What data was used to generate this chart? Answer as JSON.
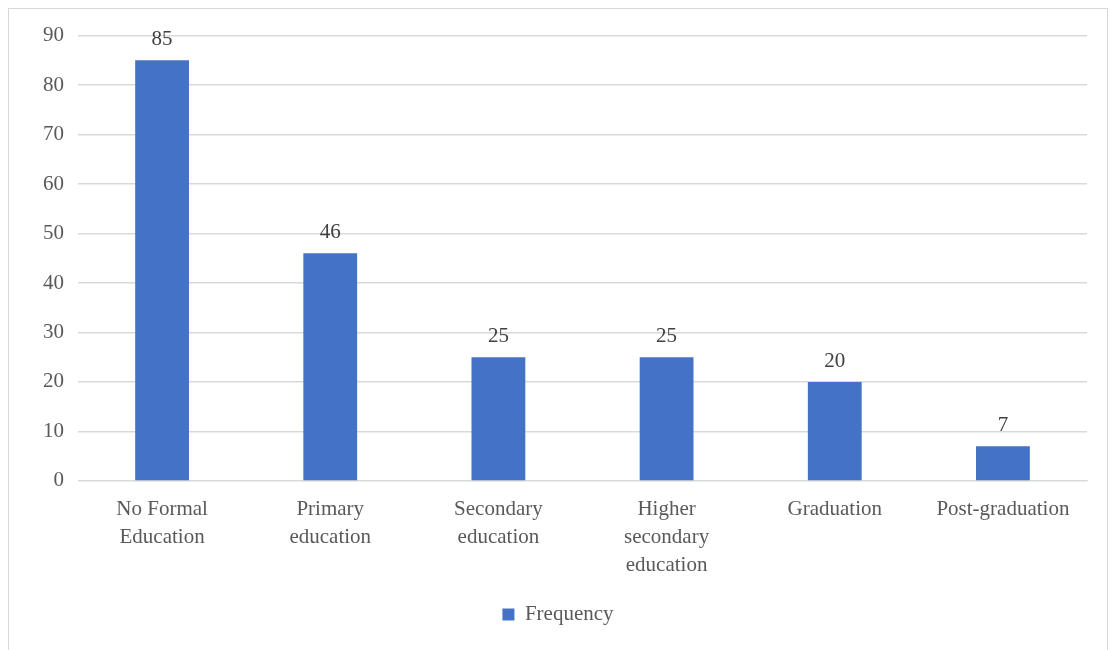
{
  "chart_data": {
    "type": "bar",
    "categories": [
      "No Formal Education",
      "Primary education",
      "Secondary education",
      "Higher secondary education",
      "Graduation",
      "Post-graduation"
    ],
    "series": [
      {
        "name": "Frequency",
        "color": "#4472c4",
        "values": [
          85,
          46,
          25,
          25,
          20,
          7
        ]
      }
    ],
    "ylim": [
      0,
      90
    ],
    "yticks": [
      0,
      10,
      20,
      30,
      40,
      50,
      60,
      70,
      80,
      90
    ],
    "grid": "y",
    "legend": "bottom",
    "data_labels": true
  }
}
